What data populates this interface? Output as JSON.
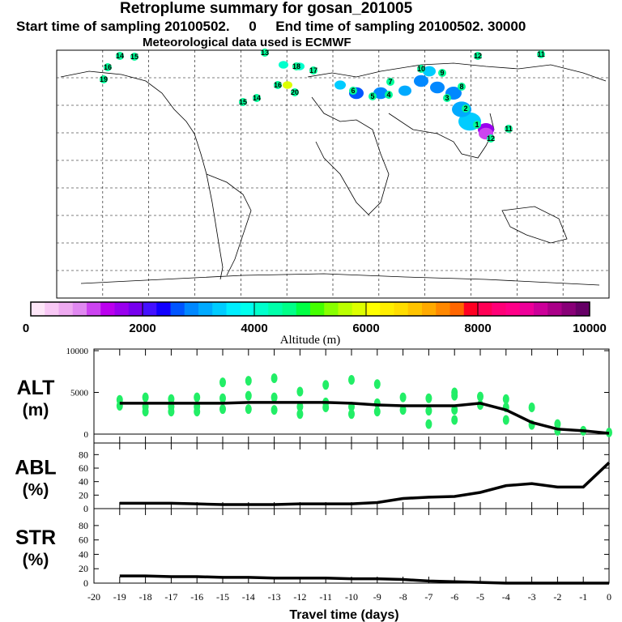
{
  "header": {
    "title": "Retroplume summary for gosan_201005",
    "subtitle": "Start time of sampling 20100502.     0     End time of sampling 20100502. 30000",
    "met": "Meteorological data used is ECMWF"
  },
  "map": {
    "plume_labels": [
      "14",
      "15",
      "16",
      "19",
      "13",
      "18",
      "17",
      "16",
      "20",
      "15",
      "14",
      "12",
      "11",
      "10",
      "9",
      "8",
      "7",
      "6",
      "5",
      "4",
      "3",
      "2",
      "1",
      "12",
      "11"
    ]
  },
  "colorbar": {
    "label": "Altitude (m)",
    "ticks": [
      "0",
      "2000",
      "4000",
      "6000",
      "8000",
      "10000"
    ],
    "colors": [
      "#fde6f8",
      "#f8c8f5",
      "#eeaaf0",
      "#e088f0",
      "#cc44f0",
      "#bb00ee",
      "#9900ee",
      "#7700ee",
      "#4411ff",
      "#1100ff",
      "#0055ff",
      "#0088ff",
      "#00aaff",
      "#00ccff",
      "#00eeff",
      "#00ffee",
      "#00ffcc",
      "#00ffaa",
      "#00ff88",
      "#00ff44",
      "#44ff00",
      "#88ff00",
      "#bbff00",
      "#ddff00",
      "#ffff00",
      "#ffee00",
      "#ffdd00",
      "#ffc400",
      "#ffaa00",
      "#ff8800",
      "#ff6600",
      "#ff0022",
      "#ff0055",
      "#ff0077",
      "#ff0088",
      "#ee0099",
      "#cc0099",
      "#aa0088",
      "#880077",
      "#660066"
    ]
  },
  "chart_data": [
    {
      "type": "line",
      "title": "ALT (m)",
      "ylabel": "ALT (m)",
      "ylim": [
        0,
        10000
      ],
      "yticks": [
        "0",
        "5000",
        "10000"
      ],
      "x": [
        -19,
        -18,
        -17,
        -16,
        -15,
        -14,
        -13,
        -12,
        -11,
        -10,
        -9,
        -8,
        -7,
        -6,
        -5,
        -4,
        -3,
        -2,
        -1,
        0
      ],
      "values": [
        3700,
        3700,
        3700,
        3700,
        3700,
        3800,
        3800,
        3800,
        3800,
        3700,
        3500,
        3400,
        3400,
        3400,
        3700,
        2900,
        1400,
        600,
        400,
        100
      ],
      "scatter": [
        [
          -19,
          3400
        ],
        [
          -19,
          4100
        ],
        [
          -18,
          3300
        ],
        [
          -18,
          4400
        ],
        [
          -18,
          2700
        ],
        [
          -17,
          3300
        ],
        [
          -17,
          4200
        ],
        [
          -17,
          2700
        ],
        [
          -16,
          3300
        ],
        [
          -16,
          4400
        ],
        [
          -16,
          2700
        ],
        [
          -15,
          3000
        ],
        [
          -15,
          4300
        ],
        [
          -15,
          6200
        ],
        [
          -14,
          3000
        ],
        [
          -14,
          4600
        ],
        [
          -14,
          6400
        ],
        [
          -13,
          2900
        ],
        [
          -13,
          4400
        ],
        [
          -13,
          6700
        ],
        [
          -12,
          3300
        ],
        [
          -12,
          5100
        ],
        [
          -12,
          2400
        ],
        [
          -11,
          3200
        ],
        [
          -11,
          5900
        ],
        [
          -11,
          3800
        ],
        [
          -10,
          3300
        ],
        [
          -10,
          6500
        ],
        [
          -10,
          2400
        ],
        [
          -9,
          3700
        ],
        [
          -9,
          2700
        ],
        [
          -9,
          6000
        ],
        [
          -8,
          2900
        ],
        [
          -8,
          4400
        ],
        [
          -7,
          2800
        ],
        [
          -7,
          4300
        ],
        [
          -7,
          1200
        ],
        [
          -6,
          2900
        ],
        [
          -6,
          4600
        ],
        [
          -6,
          1700
        ],
        [
          -6,
          5000
        ],
        [
          -5,
          3500
        ],
        [
          -5,
          4500
        ],
        [
          -4,
          3200
        ],
        [
          -4,
          1700
        ],
        [
          -4,
          4200
        ],
        [
          -3,
          3200
        ],
        [
          -3,
          1100
        ],
        [
          -2,
          1200
        ],
        [
          -2,
          400
        ],
        [
          -1,
          400
        ],
        [
          0,
          200
        ]
      ]
    },
    {
      "type": "line",
      "ylabel": "ABL (%)",
      "ylim": [
        0,
        90
      ],
      "yticks": [
        "0",
        "20",
        "40",
        "60",
        "80"
      ],
      "x": [
        -19,
        -18,
        -17,
        -16,
        -15,
        -14,
        -13,
        -12,
        -11,
        -10,
        -9,
        -8,
        -7,
        -6,
        -5,
        -4,
        -3,
        -2,
        -1,
        0
      ],
      "values": [
        8,
        8,
        8,
        7,
        6,
        6,
        6,
        7,
        7,
        7,
        9,
        15,
        17,
        18,
        24,
        34,
        37,
        32,
        32,
        68
      ]
    },
    {
      "type": "line",
      "ylabel": "STR (%)",
      "ylim": [
        0,
        90
      ],
      "yticks": [
        "0",
        "20",
        "40",
        "60",
        "80"
      ],
      "x": [
        -19,
        -18,
        -17,
        -16,
        -15,
        -14,
        -13,
        -12,
        -11,
        -10,
        -9,
        -8,
        -7,
        -6,
        -5,
        -4,
        -3,
        -2,
        -1,
        0
      ],
      "values": [
        10,
        10,
        9,
        9,
        8,
        8,
        7,
        7,
        7,
        6,
        6,
        5,
        3,
        2,
        1,
        0,
        0,
        0,
        0,
        0
      ],
      "xlabel": "Travel time (days)",
      "xticks": [
        "-20",
        "-19",
        "-18",
        "-17",
        "-16",
        "-15",
        "-14",
        "-13",
        "-12",
        "-11",
        "-10",
        "-9",
        "-8",
        "-7",
        "-6",
        "-5",
        "-4",
        "-3",
        "-2",
        "-1",
        "0"
      ]
    }
  ]
}
